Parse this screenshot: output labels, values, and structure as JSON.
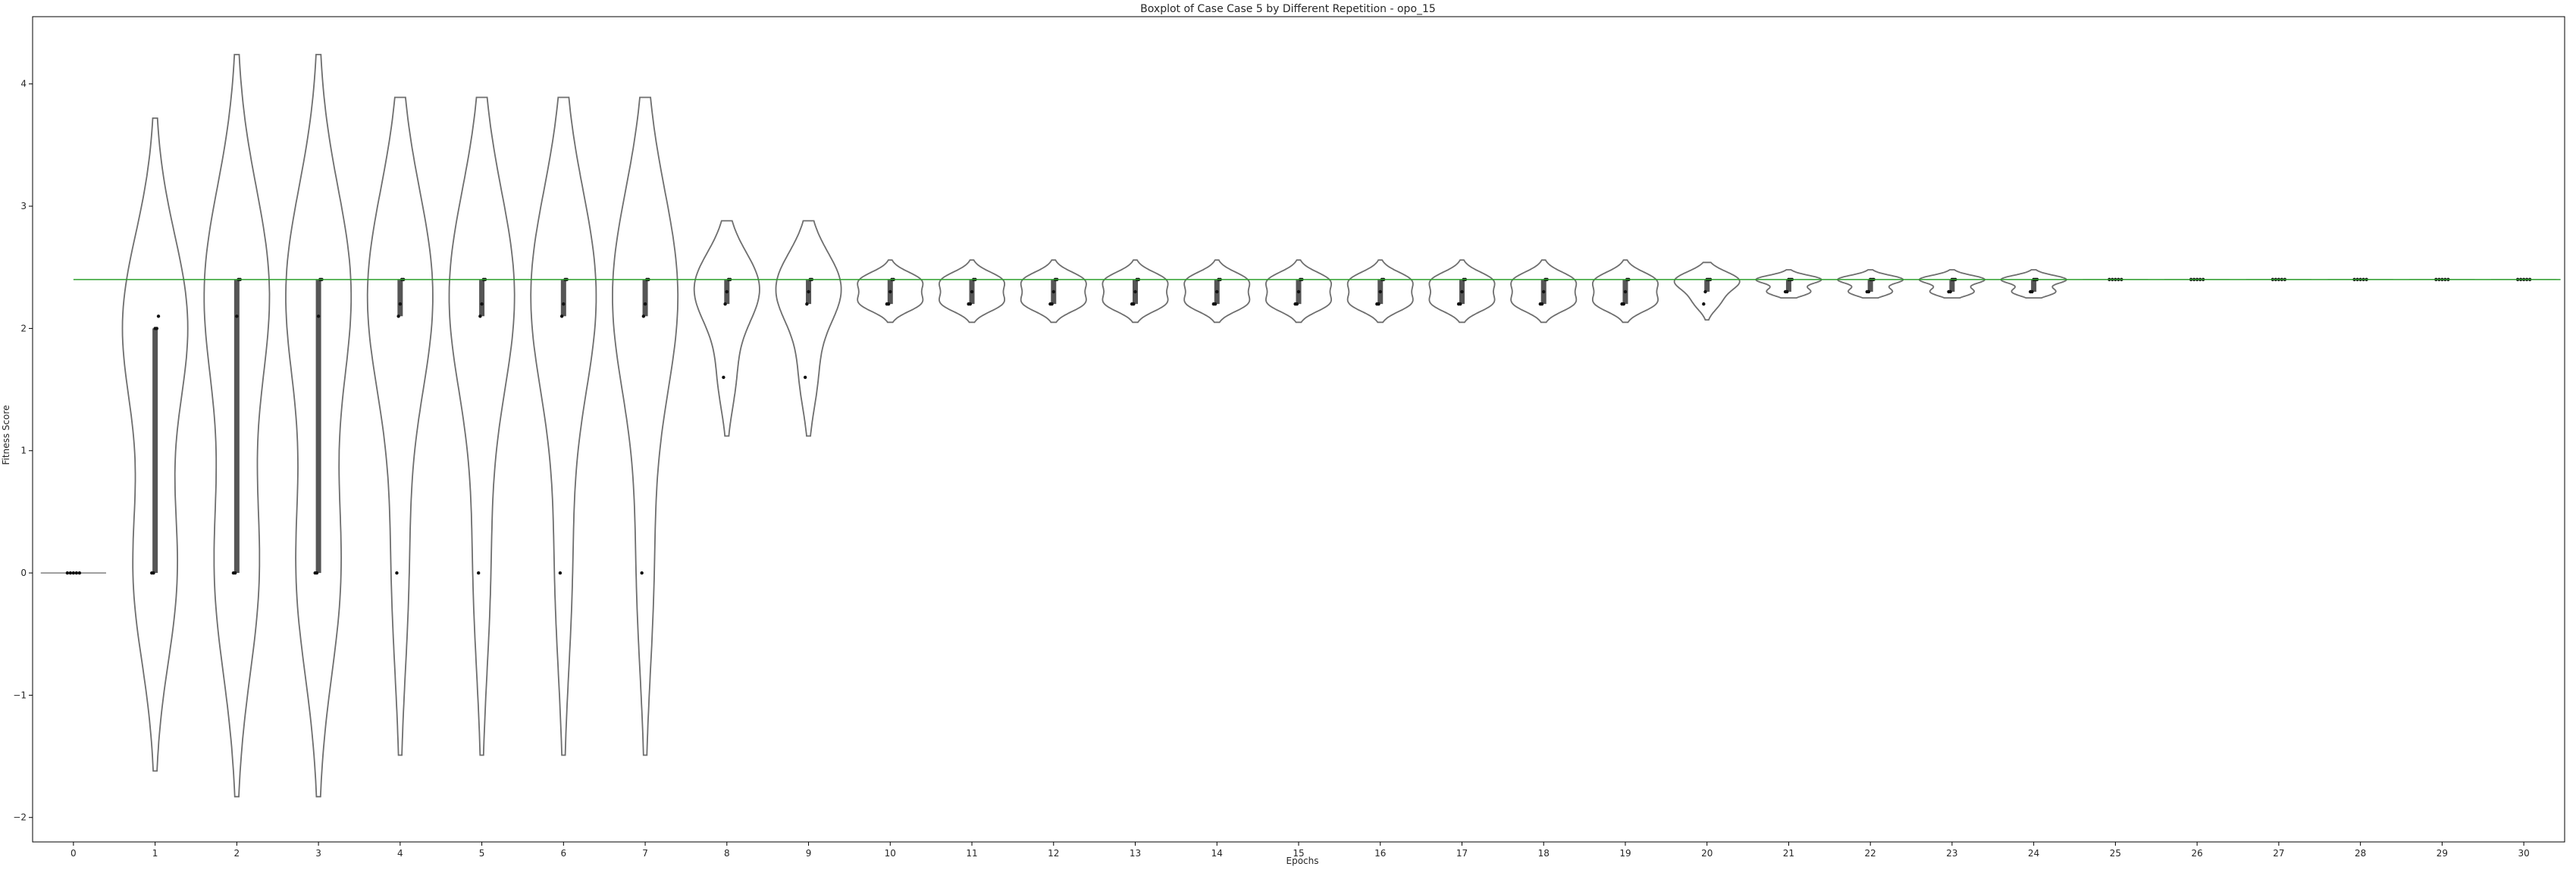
{
  "chart_data": {
    "type": "violin",
    "title": "Boxplot of Case Case 5 by Different Repetition - opo_15",
    "xlabel": "Epochs",
    "ylabel": "Fitness Score",
    "ylim": [
      -2.2,
      4.55
    ],
    "yticks": [
      -2,
      -1,
      0,
      1,
      2,
      3,
      4
    ],
    "categories": [
      "0",
      "1",
      "2",
      "3",
      "4",
      "5",
      "6",
      "7",
      "8",
      "9",
      "10",
      "11",
      "12",
      "13",
      "14",
      "15",
      "16",
      "17",
      "18",
      "19",
      "20",
      "21",
      "22",
      "23",
      "24",
      "25",
      "26",
      "27",
      "28",
      "29",
      "30"
    ],
    "reference_line": {
      "value": 2.4,
      "color": "#2ca02c"
    },
    "grid": false,
    "violins": [
      {
        "epoch": 0,
        "min": 0,
        "max": 0,
        "q1": 0,
        "median": 0,
        "q3": 0,
        "points": [
          0,
          0,
          0,
          0,
          0
        ]
      },
      {
        "epoch": 1,
        "min": -1.62,
        "max": 3.72,
        "q1": 0,
        "median": 2.0,
        "q3": 2.0,
        "points": [
          0,
          0,
          2.0,
          2.0,
          2.1
        ]
      },
      {
        "epoch": 2,
        "min": -1.83,
        "max": 4.24,
        "q1": 0,
        "median": 2.1,
        "q3": 2.4,
        "points": [
          0,
          0,
          2.1,
          2.4,
          2.4
        ]
      },
      {
        "epoch": 3,
        "min": -1.83,
        "max": 4.24,
        "q1": 0,
        "median": 2.1,
        "q3": 2.4,
        "points": [
          0,
          0,
          2.1,
          2.4,
          2.4
        ]
      },
      {
        "epoch": 4,
        "min": -1.49,
        "max": 3.89,
        "q1": 2.1,
        "median": 2.2,
        "q3": 2.4,
        "points": [
          0,
          2.1,
          2.2,
          2.4,
          2.4
        ]
      },
      {
        "epoch": 5,
        "min": -1.49,
        "max": 3.89,
        "q1": 2.1,
        "median": 2.2,
        "q3": 2.4,
        "points": [
          0,
          2.1,
          2.2,
          2.4,
          2.4
        ]
      },
      {
        "epoch": 6,
        "min": -1.49,
        "max": 3.89,
        "q1": 2.1,
        "median": 2.2,
        "q3": 2.4,
        "points": [
          0,
          2.1,
          2.2,
          2.4,
          2.4
        ]
      },
      {
        "epoch": 7,
        "min": -1.49,
        "max": 3.89,
        "q1": 2.1,
        "median": 2.2,
        "q3": 2.4,
        "points": [
          0,
          2.1,
          2.2,
          2.4,
          2.4
        ]
      },
      {
        "epoch": 8,
        "min": 1.12,
        "max": 2.88,
        "q1": 2.2,
        "median": 2.3,
        "q3": 2.4,
        "points": [
          1.6,
          2.2,
          2.3,
          2.4,
          2.4
        ]
      },
      {
        "epoch": 9,
        "min": 1.12,
        "max": 2.88,
        "q1": 2.2,
        "median": 2.3,
        "q3": 2.4,
        "points": [
          1.6,
          2.2,
          2.3,
          2.4,
          2.4
        ]
      },
      {
        "epoch": 10,
        "min": 2.05,
        "max": 2.56,
        "q1": 2.2,
        "median": 2.3,
        "q3": 2.4,
        "points": [
          2.2,
          2.2,
          2.3,
          2.4,
          2.4
        ]
      },
      {
        "epoch": 11,
        "min": 2.05,
        "max": 2.56,
        "q1": 2.2,
        "median": 2.3,
        "q3": 2.4,
        "points": [
          2.2,
          2.2,
          2.3,
          2.4,
          2.4
        ]
      },
      {
        "epoch": 12,
        "min": 2.05,
        "max": 2.56,
        "q1": 2.2,
        "median": 2.3,
        "q3": 2.4,
        "points": [
          2.2,
          2.2,
          2.3,
          2.4,
          2.4
        ]
      },
      {
        "epoch": 13,
        "min": 2.05,
        "max": 2.56,
        "q1": 2.2,
        "median": 2.3,
        "q3": 2.4,
        "points": [
          2.2,
          2.2,
          2.3,
          2.4,
          2.4
        ]
      },
      {
        "epoch": 14,
        "min": 2.05,
        "max": 2.56,
        "q1": 2.2,
        "median": 2.3,
        "q3": 2.4,
        "points": [
          2.2,
          2.2,
          2.3,
          2.4,
          2.4
        ]
      },
      {
        "epoch": 15,
        "min": 2.05,
        "max": 2.56,
        "q1": 2.2,
        "median": 2.3,
        "q3": 2.4,
        "points": [
          2.2,
          2.2,
          2.3,
          2.4,
          2.4
        ]
      },
      {
        "epoch": 16,
        "min": 2.05,
        "max": 2.56,
        "q1": 2.2,
        "median": 2.3,
        "q3": 2.4,
        "points": [
          2.2,
          2.2,
          2.3,
          2.4,
          2.4
        ]
      },
      {
        "epoch": 17,
        "min": 2.05,
        "max": 2.56,
        "q1": 2.2,
        "median": 2.3,
        "q3": 2.4,
        "points": [
          2.2,
          2.2,
          2.3,
          2.4,
          2.4
        ]
      },
      {
        "epoch": 18,
        "min": 2.05,
        "max": 2.56,
        "q1": 2.2,
        "median": 2.3,
        "q3": 2.4,
        "points": [
          2.2,
          2.2,
          2.3,
          2.4,
          2.4
        ]
      },
      {
        "epoch": 19,
        "min": 2.05,
        "max": 2.56,
        "q1": 2.2,
        "median": 2.3,
        "q3": 2.4,
        "points": [
          2.2,
          2.2,
          2.3,
          2.4,
          2.4
        ]
      },
      {
        "epoch": 20,
        "min": 2.07,
        "max": 2.54,
        "q1": 2.3,
        "median": 2.4,
        "q3": 2.4,
        "points": [
          2.2,
          2.3,
          2.4,
          2.4,
          2.4
        ]
      },
      {
        "epoch": 21,
        "min": 2.25,
        "max": 2.48,
        "q1": 2.3,
        "median": 2.4,
        "q3": 2.4,
        "points": [
          2.3,
          2.3,
          2.4,
          2.4,
          2.4
        ]
      },
      {
        "epoch": 22,
        "min": 2.25,
        "max": 2.48,
        "q1": 2.3,
        "median": 2.4,
        "q3": 2.4,
        "points": [
          2.3,
          2.3,
          2.4,
          2.4,
          2.4
        ]
      },
      {
        "epoch": 23,
        "min": 2.25,
        "max": 2.48,
        "q1": 2.3,
        "median": 2.4,
        "q3": 2.4,
        "points": [
          2.3,
          2.3,
          2.4,
          2.4,
          2.4
        ]
      },
      {
        "epoch": 24,
        "min": 2.25,
        "max": 2.48,
        "q1": 2.3,
        "median": 2.4,
        "q3": 2.4,
        "points": [
          2.3,
          2.3,
          2.4,
          2.4,
          2.4
        ]
      },
      {
        "epoch": 25,
        "min": 2.4,
        "max": 2.4,
        "q1": 2.4,
        "median": 2.4,
        "q3": 2.4,
        "points": [
          2.4,
          2.4,
          2.4,
          2.4,
          2.4
        ]
      },
      {
        "epoch": 26,
        "min": 2.4,
        "max": 2.4,
        "q1": 2.4,
        "median": 2.4,
        "q3": 2.4,
        "points": [
          2.4,
          2.4,
          2.4,
          2.4,
          2.4
        ]
      },
      {
        "epoch": 27,
        "min": 2.4,
        "max": 2.4,
        "q1": 2.4,
        "median": 2.4,
        "q3": 2.4,
        "points": [
          2.4,
          2.4,
          2.4,
          2.4,
          2.4
        ]
      },
      {
        "epoch": 28,
        "min": 2.4,
        "max": 2.4,
        "q1": 2.4,
        "median": 2.4,
        "q3": 2.4,
        "points": [
          2.4,
          2.4,
          2.4,
          2.4,
          2.4
        ]
      },
      {
        "epoch": 29,
        "min": 2.4,
        "max": 2.4,
        "q1": 2.4,
        "median": 2.4,
        "q3": 2.4,
        "points": [
          2.4,
          2.4,
          2.4,
          2.4,
          2.4
        ]
      },
      {
        "epoch": 30,
        "min": 2.4,
        "max": 2.4,
        "q1": 2.4,
        "median": 2.4,
        "q3": 2.4,
        "points": [
          2.4,
          2.4,
          2.4,
          2.4,
          2.4
        ]
      }
    ]
  }
}
